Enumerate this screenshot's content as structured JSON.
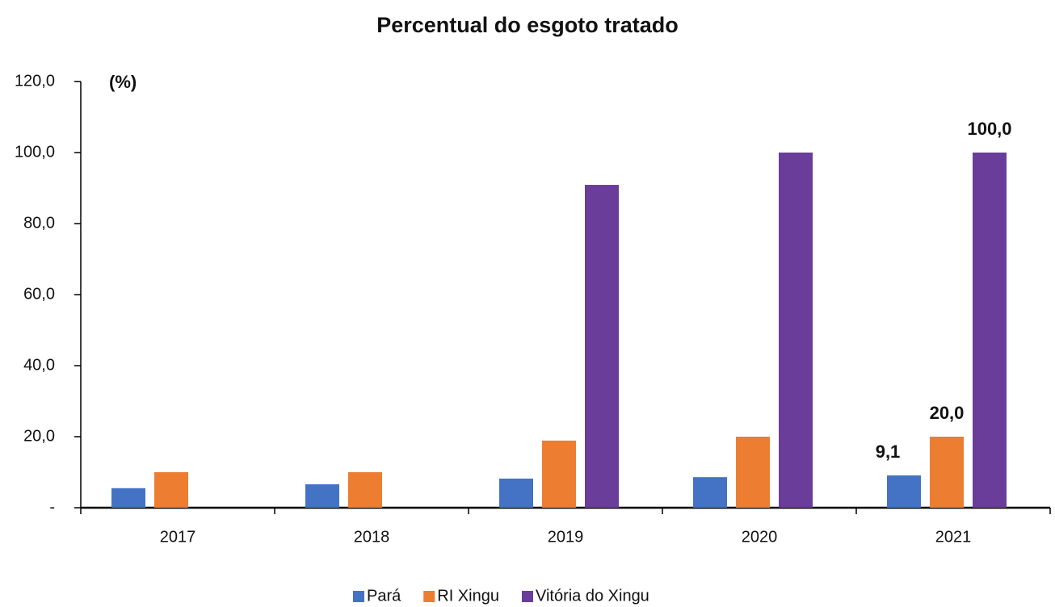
{
  "chart_data": {
    "type": "bar",
    "title": "Percentual do esgoto tratado",
    "y_axis_label": "(%)",
    "categories": [
      "2017",
      "2018",
      "2019",
      "2020",
      "2021"
    ],
    "series": [
      {
        "name": "Pará",
        "color": "#4472c4",
        "values": [
          5.5,
          6.6,
          8.2,
          8.6,
          9.1
        ],
        "value_labels": [
          null,
          null,
          null,
          null,
          "9,1"
        ]
      },
      {
        "name": "RI Xingu",
        "color": "#ed7d31",
        "values": [
          10,
          10,
          18.9,
          20,
          20
        ],
        "value_labels": [
          null,
          null,
          null,
          null,
          "20,0"
        ]
      },
      {
        "name": "Vitória do Xingu",
        "color": "#6a3d9a",
        "values": [
          null,
          null,
          90.9,
          100,
          100
        ],
        "value_labels": [
          null,
          null,
          null,
          null,
          "100,0"
        ]
      }
    ],
    "ylim": [
      0,
      120
    ],
    "yticks": [
      {
        "value": 0,
        "label": "-"
      },
      {
        "value": 20,
        "label": "20,0"
      },
      {
        "value": 40,
        "label": "40,0"
      },
      {
        "value": 60,
        "label": "60,0"
      },
      {
        "value": 80,
        "label": "80,0"
      },
      {
        "value": 100,
        "label": "100,0"
      },
      {
        "value": 120,
        "label": "120,0"
      }
    ],
    "grid": false,
    "legend": "bottom"
  }
}
